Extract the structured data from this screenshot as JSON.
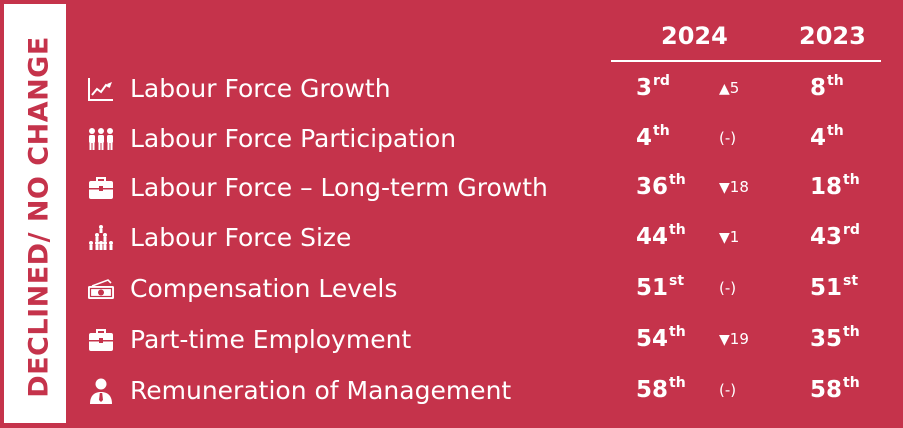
{
  "side_label": "DECLINED/ NO CHANGE",
  "columns": {
    "current": "2024",
    "previous": "2023"
  },
  "colors": {
    "background": "#c5334b",
    "text": "#ffffff",
    "panel": "#ffffff"
  },
  "rows": [
    {
      "icon": "line-chart-icon",
      "label": "Labour Force Growth",
      "rank_2024": "3",
      "suffix_2024": "rd",
      "arrow": "▲",
      "change": "5",
      "rank_2023": "8",
      "suffix_2023": "th"
    },
    {
      "icon": "people-group-icon",
      "label": "Labour Force Participation",
      "rank_2024": "4",
      "suffix_2024": "th",
      "arrow": "",
      "change": "(-)",
      "rank_2023": "4",
      "suffix_2023": "th"
    },
    {
      "icon": "briefcase-icon",
      "label": "Labour Force – Long-term Growth",
      "rank_2024": "36",
      "suffix_2024": "th",
      "arrow": "▼",
      "change": "18",
      "rank_2023": "18",
      "suffix_2023": "th"
    },
    {
      "icon": "crowd-pyramid-icon",
      "label": "Labour Force Size",
      "rank_2024": "44",
      "suffix_2024": "th",
      "arrow": "▼",
      "change": "1",
      "rank_2023": "43",
      "suffix_2023": "rd"
    },
    {
      "icon": "cash-icon",
      "label": "Compensation Levels",
      "rank_2024": "51",
      "suffix_2024": "st",
      "arrow": "",
      "change": "(-)",
      "rank_2023": "51",
      "suffix_2023": "st"
    },
    {
      "icon": "briefcase-icon",
      "label": "Part-time Employment",
      "rank_2024": "54",
      "suffix_2024": "th",
      "arrow": "▼",
      "change": "19",
      "rank_2023": "35",
      "suffix_2023": "th"
    },
    {
      "icon": "manager-icon",
      "label": "Remuneration of Management",
      "rank_2024": "58",
      "suffix_2024": "th",
      "arrow": "",
      "change": "(-)",
      "rank_2023": "58",
      "suffix_2023": "th"
    }
  ]
}
